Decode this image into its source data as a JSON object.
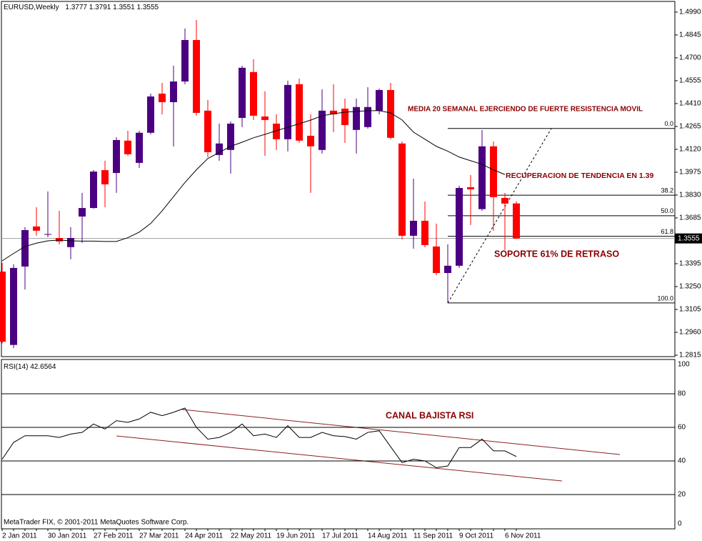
{
  "chart_data": [
    {
      "type": "candlestick",
      "title": "EURUSD,Weekly",
      "categories": [
        "2 Jan 2011",
        null,
        null,
        null,
        "30 Jan 2011",
        null,
        null,
        null,
        "27 Feb 2011",
        null,
        null,
        null,
        "27 Mar 2011",
        null,
        null,
        null,
        "24 Apr 2011",
        null,
        null,
        null,
        "22 May 2011",
        null,
        null,
        null,
        "19 Jun 2011",
        null,
        null,
        null,
        "17 Jul 2011",
        null,
        null,
        null,
        "14 Aug 2011",
        null,
        null,
        null,
        "11 Sep 2011",
        null,
        null,
        null,
        "9 Oct 2011",
        null,
        null,
        null,
        "6 Nov 2011",
        null
      ],
      "open": [
        1.3345,
        1.288,
        1.3377,
        1.3631,
        1.3581,
        1.3558,
        1.35,
        1.3694,
        1.3748,
        1.3988,
        1.397,
        1.4175,
        1.4034,
        1.4225,
        1.4473,
        1.4419,
        1.455,
        1.4813,
        1.4365,
        1.4084,
        1.4116,
        1.4319,
        1.461,
        1.4328,
        1.4283,
        1.4184,
        1.4533,
        1.4206,
        1.4116,
        1.4365,
        1.4378,
        1.4243,
        1.4261,
        1.4365,
        1.4496,
        1.4157,
        1.3572,
        1.3667,
        1.3504,
        1.3336,
        1.3382,
        1.388,
        1.3741,
        1.4139,
        1.3812,
        1.3777
      ],
      "high": [
        1.34,
        1.3391,
        1.3627,
        1.3753,
        1.3853,
        1.373,
        1.3627,
        1.3844,
        1.3989,
        1.4048,
        1.4197,
        1.4238,
        1.4238,
        1.4473,
        1.4541,
        1.465,
        1.4886,
        1.494,
        1.4433,
        1.4283,
        1.4297,
        1.465,
        1.4691,
        1.4487,
        1.4342,
        1.4555,
        1.4569,
        1.4342,
        1.4501,
        1.4532,
        1.4442,
        1.4442,
        1.4514,
        1.4505,
        1.4541,
        1.417,
        1.3934,
        1.3789,
        1.3649,
        1.3518,
        1.3889,
        1.3957,
        1.4242,
        1.417,
        1.3844,
        1.3791
      ],
      "low": [
        1.289,
        1.286,
        1.3232,
        1.3572,
        1.3563,
        1.3518,
        1.3423,
        1.3527,
        1.3744,
        1.3753,
        1.3844,
        1.4079,
        1.4002,
        1.4215,
        1.4342,
        1.4138,
        1.4532,
        1.4333,
        1.407,
        1.4048,
        1.3966,
        1.4261,
        1.4306,
        1.4079,
        1.4116,
        1.4107,
        1.4161,
        1.3844,
        1.4093,
        1.4229,
        1.4161,
        1.4093,
        1.4251,
        1.4342,
        1.4184,
        1.3549,
        1.349,
        1.3499,
        1.3322,
        1.3146,
        1.3368,
        1.364,
        1.373,
        1.3604,
        1.3482,
        1.3551
      ],
      "close": [
        1.29,
        1.3368,
        1.3608,
        1.3604,
        1.3583,
        1.3536,
        1.3558,
        1.3748,
        1.3979,
        1.3898,
        1.4179,
        1.4089,
        1.4225,
        1.4455,
        1.4419,
        1.455,
        1.4813,
        1.4351,
        1.4102,
        1.4157,
        1.4283,
        1.4637,
        1.4333,
        1.4306,
        1.4184,
        1.4528,
        1.4175,
        1.4139,
        1.4365,
        1.4342,
        1.4274,
        1.4388,
        1.4388,
        1.4496,
        1.4193,
        1.3572,
        1.3667,
        1.3513,
        1.3336,
        1.3382,
        1.3875,
        1.3866,
        1.4139,
        1.3817,
        1.3776,
        1.3555
      ],
      "up_color": "#4b0082",
      "down_color": "#ff0000",
      "moving_average": {
        "values": [
          1.3413,
          1.346,
          1.3504,
          1.3525,
          1.354,
          1.3545,
          1.354,
          1.3538,
          1.3538,
          1.3536,
          1.3536,
          1.356,
          1.3595,
          1.365,
          1.373,
          1.382,
          1.391,
          1.399,
          1.4062,
          1.41,
          1.4139,
          1.4165,
          1.4193,
          1.4215,
          1.4238,
          1.426,
          1.4283,
          1.4305,
          1.4333,
          1.4345,
          1.4356,
          1.436,
          1.4365,
          1.4365,
          1.4351,
          1.4306,
          1.4229,
          1.4184,
          1.4139,
          1.4108,
          1.4071,
          1.4048,
          1.4025,
          1.399,
          1.396,
          null
        ],
        "color": "#000000"
      },
      "ylim": [
        1.2815,
        1.5053
      ],
      "yticks": [
        {
          "value": 1.499,
          "label": "1.4990"
        },
        1.4845,
        {
          "value": 1.47,
          "label": "1.4700"
        },
        1.4555,
        {
          "value": 1.441,
          "label": "1.4410"
        },
        1.4265,
        {
          "value": 1.412,
          "label": "1.4120"
        },
        1.3975,
        {
          "value": 1.383,
          "label": "1.3830"
        },
        1.3685,
        1.3395,
        {
          "value": 1.325,
          "label": "1.3250"
        },
        1.3105,
        {
          "value": 1.296,
          "label": "1.2960"
        },
        1.2815
      ],
      "fibonacci": {
        "high": 1.4252,
        "low": 1.3146,
        "levels": [
          {
            "value": 0,
            "label": "0.0"
          },
          38.2,
          {
            "value": 50,
            "label": "50.0"
          },
          61.8,
          {
            "value": 100,
            "label": "100.0"
          }
        ]
      },
      "annotations": [
        "MEDIA 20 SEMANAL EJERCIENDO DE FUERTE RESISTENCIA MOVIL",
        "RECUPERACION DE TENDENCIA EN 1.39",
        "SOPORTE 61% DE RETRASO"
      ],
      "footer": "MetaTrader FIX, © 2001-2011 MetaQuotes Software Corp."
    },
    {
      "type": "line",
      "title": "RSI(14)",
      "values": [
        41,
        51,
        55,
        55,
        55,
        54,
        56,
        57,
        62,
        59,
        64,
        63,
        65,
        69,
        67,
        69,
        71.5,
        60,
        53,
        54,
        57,
        62,
        55,
        56,
        54,
        61,
        54,
        54,
        57,
        55,
        54.5,
        53,
        57,
        58,
        48.5,
        39,
        41,
        40,
        36,
        37,
        48,
        48,
        53,
        46,
        46,
        42.6564
      ],
      "color": "#000000",
      "ylim": [
        0,
        100
      ],
      "yticks": [
        0,
        20,
        40,
        60,
        80,
        100
      ],
      "annotation": "CANAL BAJISTA RSI"
    }
  ]
}
